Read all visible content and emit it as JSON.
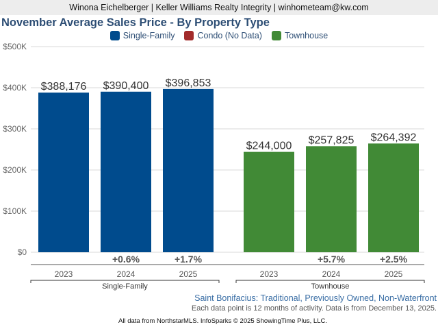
{
  "header": {
    "text": "Winona Eichelberger | Keller Williams Realty Integrity | winhometeam@kw.com"
  },
  "colors": {
    "single_family": "#004b8d",
    "condo": "#a22b2b",
    "townhouse": "#418a36",
    "title": "#2c4d74"
  },
  "legend": [
    {
      "label": "Single-Family",
      "color": "#004b8d"
    },
    {
      "label": "Condo (No Data)",
      "color": "#a22b2b"
    },
    {
      "label": "Townhouse",
      "color": "#418a36"
    }
  ],
  "footer": {
    "subtitle": "Saint Bonifacius: Traditional, Previously Owned, Non-Waterfront",
    "note": "Each data point is 12 months of activity. Data is from December 13, 2025.",
    "source": "All data from NorthstarMLS. InfoSparks © 2025 ShowingTime Plus, LLC."
  },
  "chart_data": {
    "type": "bar",
    "title": "November Average Sales Price - By Property Type",
    "xlabel": "",
    "ylabel": "",
    "ylim": [
      0,
      500000
    ],
    "yticks": [
      0,
      100000,
      200000,
      300000,
      400000,
      500000
    ],
    "ytick_labels": [
      "$0",
      "$100K",
      "$200K",
      "$300K",
      "$400K",
      "$500K"
    ],
    "grid": true,
    "legend_position": "top-center",
    "groups": [
      {
        "name": "Single-Family",
        "color": "#004b8d",
        "categories": [
          "2023",
          "2024",
          "2025"
        ],
        "values": [
          388176,
          390400,
          396853
        ],
        "value_labels": [
          "$388,176",
          "$390,400",
          "$396,853"
        ],
        "changes": [
          "",
          "+0.6%",
          "+1.7%"
        ]
      },
      {
        "name": "Townhouse",
        "color": "#418a36",
        "categories": [
          "2023",
          "2024",
          "2025"
        ],
        "values": [
          244000,
          257825,
          264392
        ],
        "value_labels": [
          "$244,000",
          "$257,825",
          "$264,392"
        ],
        "changes": [
          "",
          "+5.7%",
          "+2.5%"
        ]
      }
    ]
  }
}
